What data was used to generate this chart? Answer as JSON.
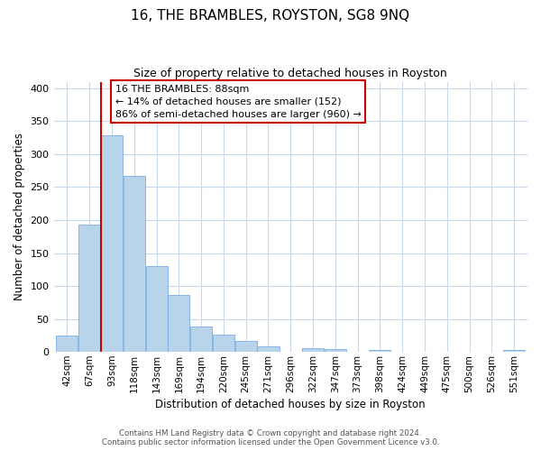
{
  "title": "16, THE BRAMBLES, ROYSTON, SG8 9NQ",
  "subtitle": "Size of property relative to detached houses in Royston",
  "xlabel": "Distribution of detached houses by size in Royston",
  "ylabel": "Number of detached properties",
  "bar_color": "#b8d4ea",
  "bar_edge_color": "#7aabe8",
  "background_color": "#ffffff",
  "grid_color": "#c8d8ec",
  "vline_color": "#cc0000",
  "annotation_box": {
    "title": "16 THE BRAMBLES: 88sqm",
    "line1": "← 14% of detached houses are smaller (152)",
    "line2": "86% of semi-detached houses are larger (960) →"
  },
  "bin_labels": [
    "42sqm",
    "67sqm",
    "93sqm",
    "118sqm",
    "143sqm",
    "169sqm",
    "194sqm",
    "220sqm",
    "245sqm",
    "271sqm",
    "296sqm",
    "322sqm",
    "347sqm",
    "373sqm",
    "398sqm",
    "424sqm",
    "449sqm",
    "475sqm",
    "500sqm",
    "526sqm",
    "551sqm"
  ],
  "bar_heights": [
    25,
    193,
    328,
    267,
    130,
    86,
    38,
    26,
    17,
    8,
    0,
    5,
    4,
    0,
    3,
    0,
    0,
    0,
    0,
    0,
    3
  ],
  "ylim": [
    0,
    410
  ],
  "yticks": [
    0,
    50,
    100,
    150,
    200,
    250,
    300,
    350,
    400
  ],
  "footer_line1": "Contains HM Land Registry data © Crown copyright and database right 2024.",
  "footer_line2": "Contains public sector information licensed under the Open Government Licence v3.0."
}
